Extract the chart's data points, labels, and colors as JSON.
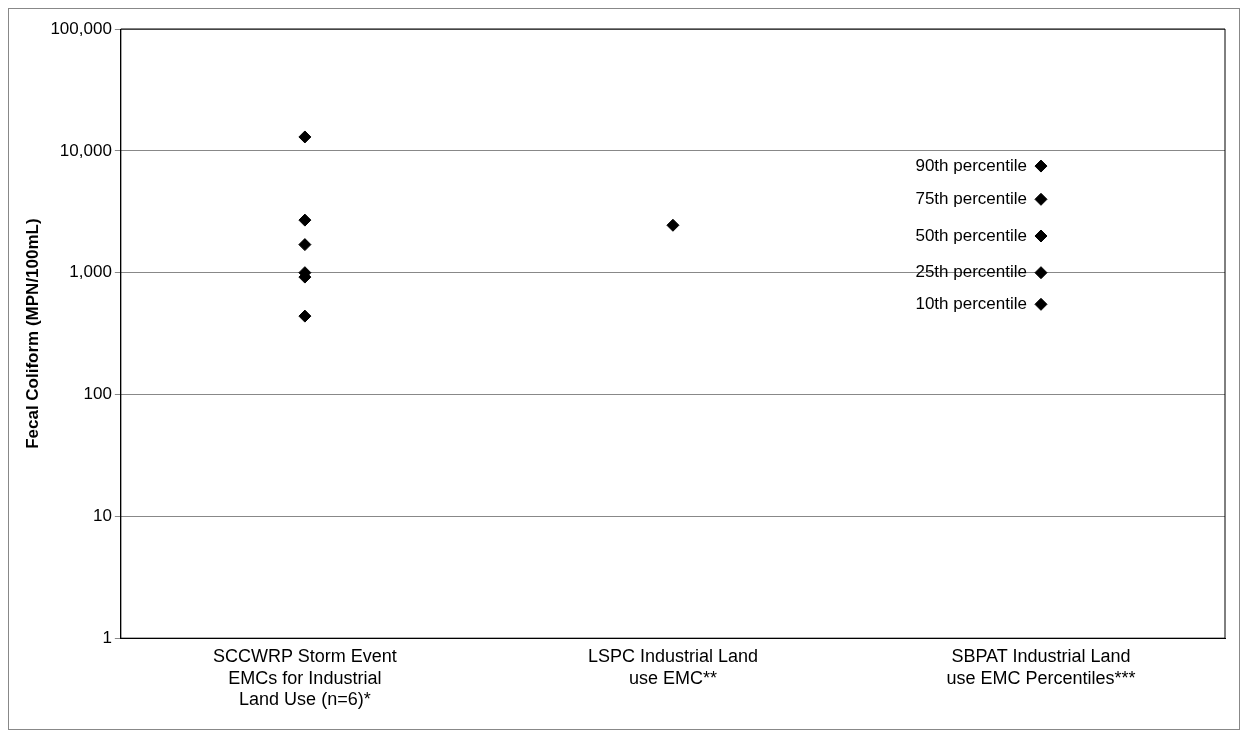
{
  "chart_data": {
    "type": "scatter",
    "ylabel": "Fecal Coliform (MPN/100mL)",
    "categories": [
      "SCCWRP Storm Event EMCs for Industrial Land Use (n=6)*",
      "LSPC Industrial Land use EMC**",
      "SBPAT Industrial Land use EMC Percentiles***"
    ],
    "series": [
      {
        "color": "#000000",
        "x": [
          "SCCWRP Storm Event EMCs for Industrial Land Use (n=6)*",
          "SCCWRP Storm Event EMCs for Industrial Land Use (n=6)*",
          "SCCWRP Storm Event EMCs for Industrial Land Use (n=6)*",
          "SCCWRP Storm Event EMCs for Industrial Land Use (n=6)*",
          "SCCWRP Storm Event EMCs for Industrial Land Use (n=6)*",
          "SCCWRP Storm Event EMCs for Industrial Land Use (n=6)*",
          "LSPC Industrial Land use EMC**",
          "SBPAT Industrial Land use EMC Percentiles***",
          "SBPAT Industrial Land use EMC Percentiles***",
          "SBPAT Industrial Land use EMC Percentiles***",
          "SBPAT Industrial Land use EMC Percentiles***",
          "SBPAT Industrial Land use EMC Percentiles***"
        ],
        "values": [
          13000,
          2700,
          1700,
          1000,
          920,
          440,
          2450,
          7500,
          4000,
          2000,
          1000,
          550
        ]
      }
    ],
    "log": "y",
    "ylim": [
      1,
      100000
    ],
    "yticks": [
      1,
      10,
      100,
      {
        "value": 1000,
        "label": "1,000"
      },
      {
        "value": 10000,
        "label": "10,000"
      },
      {
        "value": 100000,
        "label": "100,000"
      }
    ],
    "grid": "y",
    "legend": false,
    "marker": "diamond",
    "annotations": [
      {
        "text": "90th percentile",
        "x": "SBPAT Industrial Land use EMC Percentiles***",
        "y": 7500
      },
      {
        "text": "75th percentile",
        "x": "SBPAT Industrial Land use EMC Percentiles***",
        "y": 4000
      },
      {
        "text": "50th percentile",
        "x": "SBPAT Industrial Land use EMC Percentiles***",
        "y": 2000
      },
      {
        "text": "25th percentile",
        "x": "SBPAT Industrial Land use EMC Percentiles***",
        "y": 1000
      },
      {
        "text": "10th percentile",
        "x": "SBPAT Industrial Land use EMC Percentiles***",
        "y": 550
      }
    ]
  }
}
